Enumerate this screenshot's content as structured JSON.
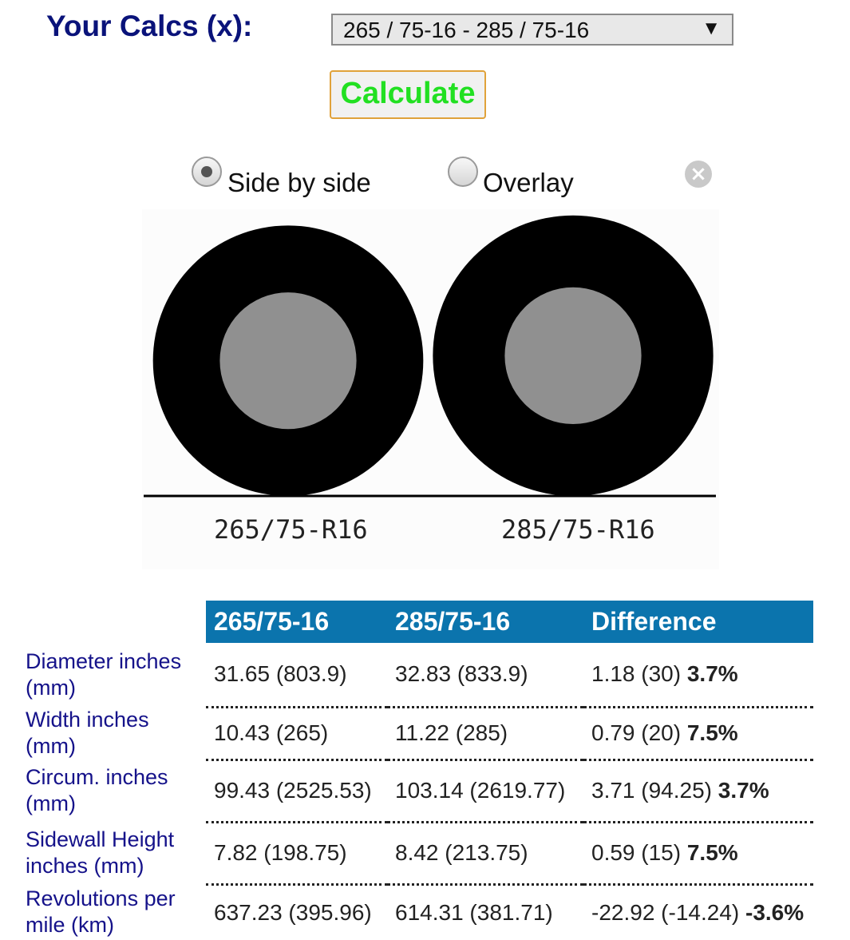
{
  "header": {
    "title": "Your Calcs (x):"
  },
  "selector": {
    "value": "265 / 75-16 - 285 / 75-16"
  },
  "calculate_button": {
    "label": "Calculate"
  },
  "view_mode": {
    "options": [
      {
        "label": "Side by side",
        "checked": true
      },
      {
        "label": "Overlay",
        "checked": false
      }
    ]
  },
  "visualization": {
    "tires": [
      {
        "label": "265/75-R16",
        "diameter_in": 31.65,
        "rim_in": 16
      },
      {
        "label": "285/75-R16",
        "diameter_in": 32.83,
        "rim_in": 16
      }
    ],
    "colors": {
      "tire": "#000000",
      "rim": "#909090",
      "ground": "#000000"
    }
  },
  "table": {
    "headers": [
      "265/75-16",
      "285/75-16",
      "Difference"
    ],
    "rows": [
      {
        "label": "Diameter inches (mm)",
        "a": "31.65 (803.9)",
        "b": "32.83 (833.9)",
        "diff": "1.18 (30)",
        "pct": "3.7%"
      },
      {
        "label": "Width inches (mm)",
        "a": "10.43 (265)",
        "b": "11.22 (285)",
        "diff": "0.79 (20)",
        "pct": "7.5%"
      },
      {
        "label": "Circum. inches (mm)",
        "a": "99.43 (2525.53)",
        "b": "103.14 (2619.77)",
        "diff": "3.71 (94.25)",
        "pct": "3.7%"
      },
      {
        "label": "Sidewall Height inches (mm)",
        "a": "7.82 (198.75)",
        "b": "8.42 (213.75)",
        "diff": "0.59 (15)",
        "pct": "7.5%"
      },
      {
        "label": "Revolutions per mile (km)",
        "a": "637.23 (395.96)",
        "b": "614.31 (381.71)",
        "diff": "-22.92 (-14.24)",
        "pct": "-3.6%"
      }
    ]
  },
  "colors": {
    "header_bg": "#0b74ad",
    "label_text": "#15128a",
    "title_text": "#0a137a",
    "button_text": "#22e022",
    "button_border": "#e0a23a"
  }
}
